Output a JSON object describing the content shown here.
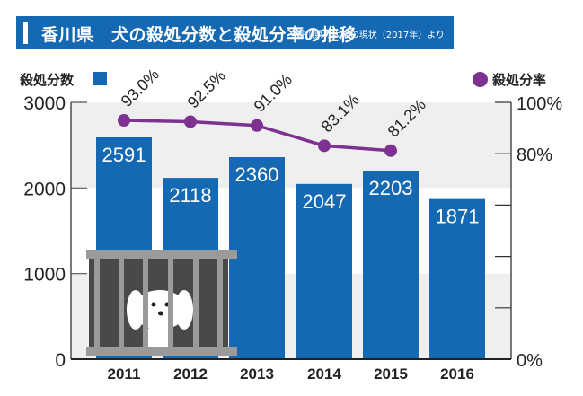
{
  "header": {
    "title": "香川県　犬の殺処分数と殺処分率の推移",
    "source": "香川県の犬猫の現状（2017年）より"
  },
  "legend": {
    "bars_label": "殺処分数",
    "line_label": "殺処分率"
  },
  "colors": {
    "bar": "#1569b3",
    "line": "#7d3190",
    "band": "#efefef",
    "cage_frame": "#9a9a9a",
    "cage_back": "#4a4848"
  },
  "chart_data": {
    "type": "bar+line",
    "title": "香川県　犬の殺処分数と殺処分率の推移",
    "subtitle": "香川県の犬猫の現状（2017年）より",
    "categories": [
      "2011",
      "2012",
      "2013",
      "2014",
      "2015",
      "2016"
    ],
    "series": [
      {
        "name": "殺処分数",
        "type": "bar",
        "axis": "left",
        "values": [
          2591,
          2118,
          2360,
          2047,
          2203,
          1871
        ],
        "labels": [
          "2591",
          "2118",
          "2360",
          "2047",
          "2203",
          "1871"
        ]
      },
      {
        "name": "殺処分率",
        "type": "line",
        "axis": "right",
        "values": [
          93.0,
          92.5,
          91.0,
          83.1,
          81.2,
          null
        ],
        "labels": [
          "93.0%",
          "92.5%",
          "91.0%",
          "83.1%",
          "81.2%"
        ]
      }
    ],
    "left_axis": {
      "label": "殺処分数",
      "ylim": [
        0,
        3000
      ],
      "ticks": [
        "3000",
        "2000",
        "1000",
        "0"
      ]
    },
    "right_axis": {
      "label": "殺処分率",
      "ylim": [
        0,
        100
      ],
      "ticks": [
        "100%",
        "80%",
        "0%"
      ]
    },
    "xlabel": "",
    "ylabel": "殺処分数",
    "legend_position": "top"
  }
}
